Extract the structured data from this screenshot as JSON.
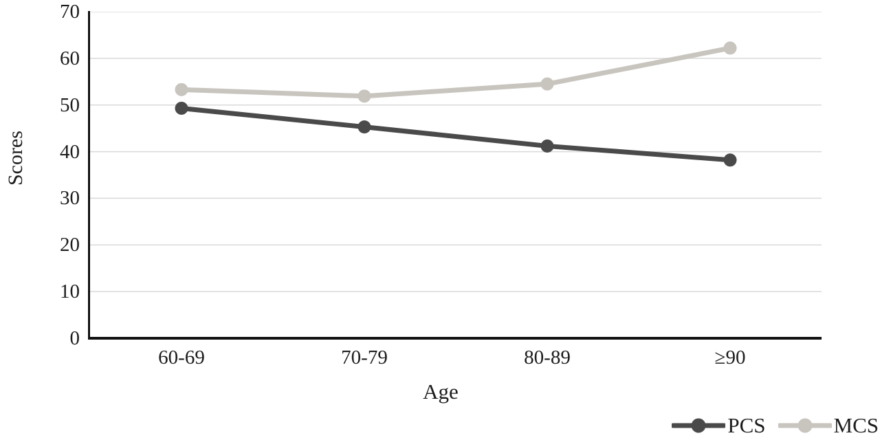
{
  "chart_data": {
    "type": "line",
    "title": "",
    "xlabel": "Age",
    "ylabel": "Scores",
    "categories": [
      "60-69",
      "70-79",
      "80-89",
      "≥90"
    ],
    "series": [
      {
        "name": "PCS",
        "values": [
          49.3,
          45.3,
          41.2,
          38.2
        ],
        "color": "#4a4a4a"
      },
      {
        "name": "MCS",
        "values": [
          53.3,
          51.9,
          54.5,
          62.2
        ],
        "color": "#c8c4be"
      }
    ],
    "ylim": [
      0,
      70
    ],
    "ytick_step": 10,
    "yticks": [
      "70",
      "60",
      "50",
      "40",
      "30",
      "20",
      "10",
      "0"
    ],
    "grid": "horizontal",
    "grid_color": "#d9d9d9",
    "axis_color": "#111111",
    "legend_position": "bottom-right",
    "marker": "circle",
    "line_width": 7,
    "marker_radius": 9.5
  }
}
